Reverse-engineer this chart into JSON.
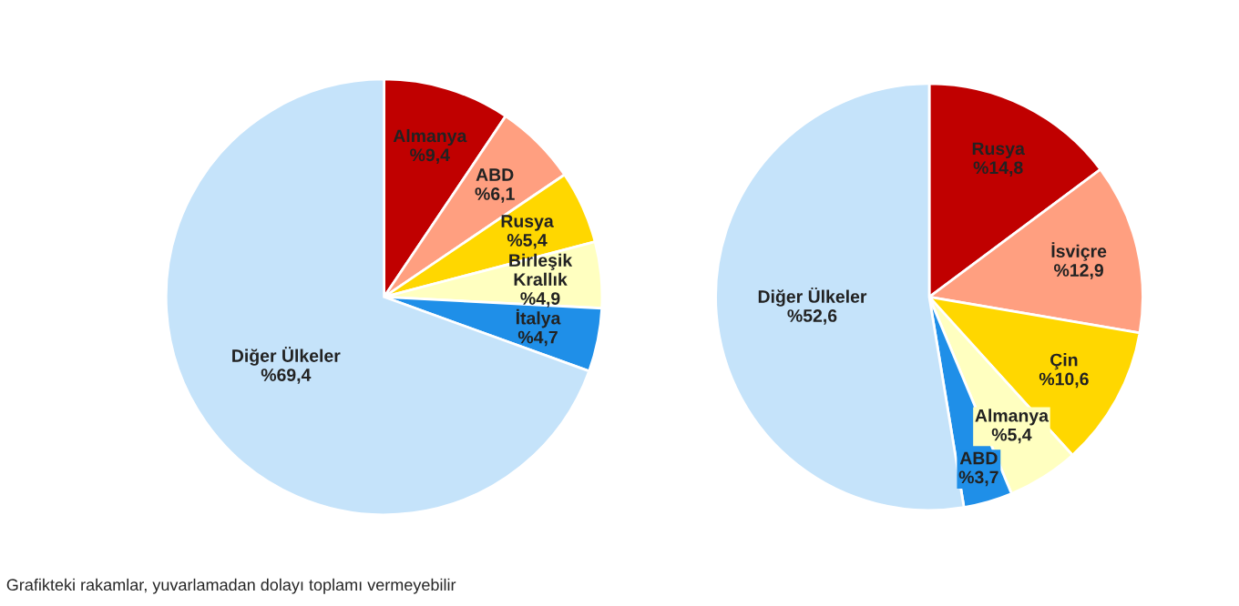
{
  "chart_data": [
    {
      "type": "pie",
      "categories": [
        "Almanya",
        "ABD",
        "Rusya",
        "Birleşik\nKrallık",
        "İtalya",
        "Diğer Ülkeler"
      ],
      "values": [
        9.4,
        6.1,
        5.4,
        4.9,
        4.7,
        69.4
      ],
      "value_labels": [
        "%9,4",
        "%6,1",
        "%5,4",
        "%4,9",
        "%4,7",
        "%69,4"
      ],
      "colors": [
        "#c00000",
        "#ff9f80",
        "#ffd700",
        "#ffffc0",
        "#1f8fe8",
        "#c5e3fa"
      ],
      "annotations": [
        "Grafikteki rakamlar, yuvarlamadan dolayı toplamı vermeyebilir"
      ]
    },
    {
      "type": "pie",
      "categories": [
        "Rusya",
        "İsviçre",
        "Çin",
        "Almanya",
        "ABD",
        "Diğer Ülkeler"
      ],
      "values": [
        14.8,
        12.9,
        10.6,
        5.4,
        3.7,
        52.6
      ],
      "value_labels": [
        "%14,8",
        "%12,9",
        "%10,6",
        "%5,4",
        "%3,7",
        "%52,6"
      ],
      "colors": [
        "#c00000",
        "#ff9f80",
        "#ffd700",
        "#ffffc0",
        "#1f8fe8",
        "#c5e3fa"
      ]
    }
  ]
}
